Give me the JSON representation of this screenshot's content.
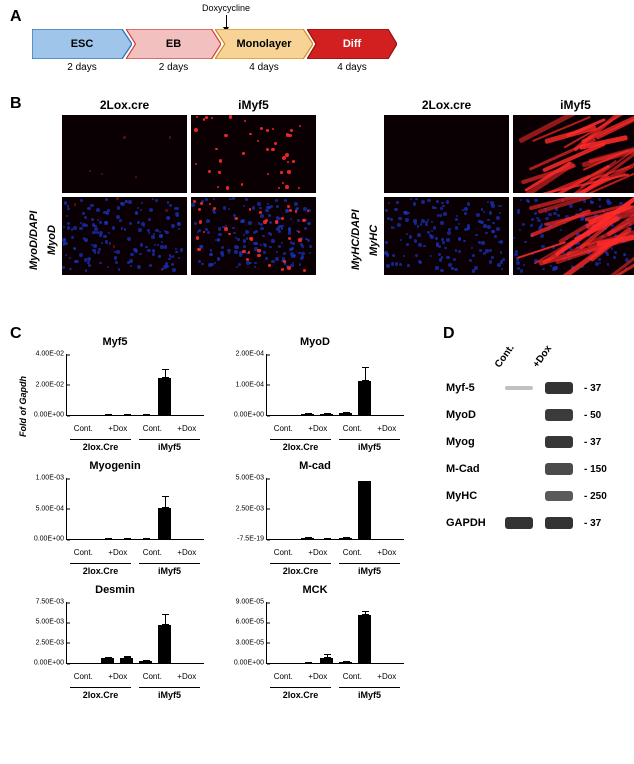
{
  "panelA": {
    "label": "A",
    "doxycycline_label": "Doxycycline",
    "stages": [
      {
        "name": "ESC",
        "duration": "2 days",
        "fill": "#9fc6ea",
        "stroke": "#2b6fb3",
        "text_color": "#000000"
      },
      {
        "name": "EB",
        "duration": "2 days",
        "fill": "#f1c0bf",
        "stroke": "#d03b35",
        "text_color": "#000000"
      },
      {
        "name": "Monolayer",
        "duration": "4 days",
        "fill": "#f7d496",
        "stroke": "#d58a1e",
        "text_color": "#000000"
      },
      {
        "name": "Diff",
        "duration": "4 days",
        "fill": "#d21f1f",
        "stroke": "#8d0f0f",
        "text_color": "#ffffff"
      }
    ]
  },
  "panelB": {
    "label": "B",
    "columns": [
      "2Lox.cre",
      "iMyf5"
    ],
    "left_rows": [
      "MyoD",
      "MyoD/DAPI"
    ],
    "right_rows": [
      "MyHC",
      "MyHC/DAPI"
    ],
    "antibody_color": "#ff2a2a",
    "dapi_color": "#1a34c8",
    "background_color": "#0a0003"
  },
  "panelC": {
    "label": "C",
    "y_axis_title": "Fold of Gapdh",
    "x_labels": [
      "Cont.",
      "+Dox",
      "Cont.",
      "+Dox"
    ],
    "x_groups": [
      "2lox.Cre",
      "iMyf5"
    ],
    "bar_color": "#000000",
    "charts": [
      {
        "title": "Myf5",
        "y_ticks": [
          "0.00E+00",
          "2.00E-02",
          "4.00E-02"
        ],
        "ymax": 0.04,
        "show_y_title": true,
        "show_x_axis": true,
        "values": [
          5e-06,
          5e-06,
          8e-06,
          0.024
        ],
        "errors": [
          2e-06,
          2e-06,
          3e-06,
          0.006
        ]
      },
      {
        "title": "MyoD",
        "y_ticks": [
          "0.00E+00",
          "1.00E-04",
          "2.00E-04"
        ],
        "ymax": 0.0002,
        "show_y_title": false,
        "show_x_axis": true,
        "values": [
          2e-06,
          3e-06,
          6e-06,
          0.00011
        ],
        "errors": [
          2e-06,
          2e-06,
          3e-06,
          4.5e-05
        ]
      },
      {
        "title": "Myogenin",
        "y_ticks": [
          "0.00E+00",
          "5.00E-04",
          "1.00E-03"
        ],
        "ymax": 0.001,
        "show_y_title": false,
        "show_x_axis": true,
        "values": [
          2e-06,
          3e-06,
          4e-06,
          0.0005
        ],
        "errors": [
          1e-06,
          2e-06,
          2e-06,
          0.0002
        ]
      },
      {
        "title": "M-cad",
        "y_ticks": [
          "-7.5E-19",
          "2.50E-03",
          "5.00E-03"
        ],
        "ymax": 0.005,
        "show_y_title": false,
        "show_x_axis": true,
        "values": [
          5e-05,
          4e-05,
          0.00012,
          0.0047
        ],
        "errors": [
          3e-05,
          3e-05,
          6e-05,
          0
        ]
      },
      {
        "title": "Desmin",
        "y_ticks": [
          "0.00E+00",
          "2.50E-03",
          "5.00E-03",
          "7.50E-03"
        ],
        "ymax": 0.0075,
        "show_y_title": false,
        "show_x_axis": true,
        "values": [
          0.00055,
          0.0006,
          0.0002,
          0.0046
        ],
        "errors": [
          0.00015,
          0.00025,
          0.0001,
          0.0013
        ]
      },
      {
        "title": "MCK",
        "y_ticks": [
          "0.00E+00",
          "3.00E-05",
          "6.00E-05",
          "9.00E-05"
        ],
        "ymax": 9e-05,
        "show_y_title": false,
        "show_x_axis": true,
        "values": [
          5e-07,
          8e-06,
          1e-06,
          7e-05
        ],
        "errors": [
          5e-07,
          5e-06,
          6e-07,
          5e-06
        ]
      }
    ]
  },
  "panelD": {
    "label": "D",
    "head": [
      "Cont.",
      "+Dox"
    ],
    "rows": [
      {
        "label": "Myf-5",
        "mw": "- 37",
        "bands": [
          0.06,
          0.95
        ]
      },
      {
        "label": "MyoD",
        "mw": "- 50",
        "bands": [
          0.0,
          0.9
        ]
      },
      {
        "label": "Myog",
        "mw": "- 37",
        "bands": [
          0.0,
          0.92
        ]
      },
      {
        "label": "M-Cad",
        "mw": "- 150",
        "bands": [
          0.0,
          0.8
        ]
      },
      {
        "label": "MyHC",
        "mw": "- 250",
        "bands": [
          0.0,
          0.7
        ]
      },
      {
        "label": "GAPDH",
        "mw": "- 37",
        "bands": [
          0.95,
          0.95
        ]
      }
    ],
    "band_color": "#2b2b2b"
  }
}
